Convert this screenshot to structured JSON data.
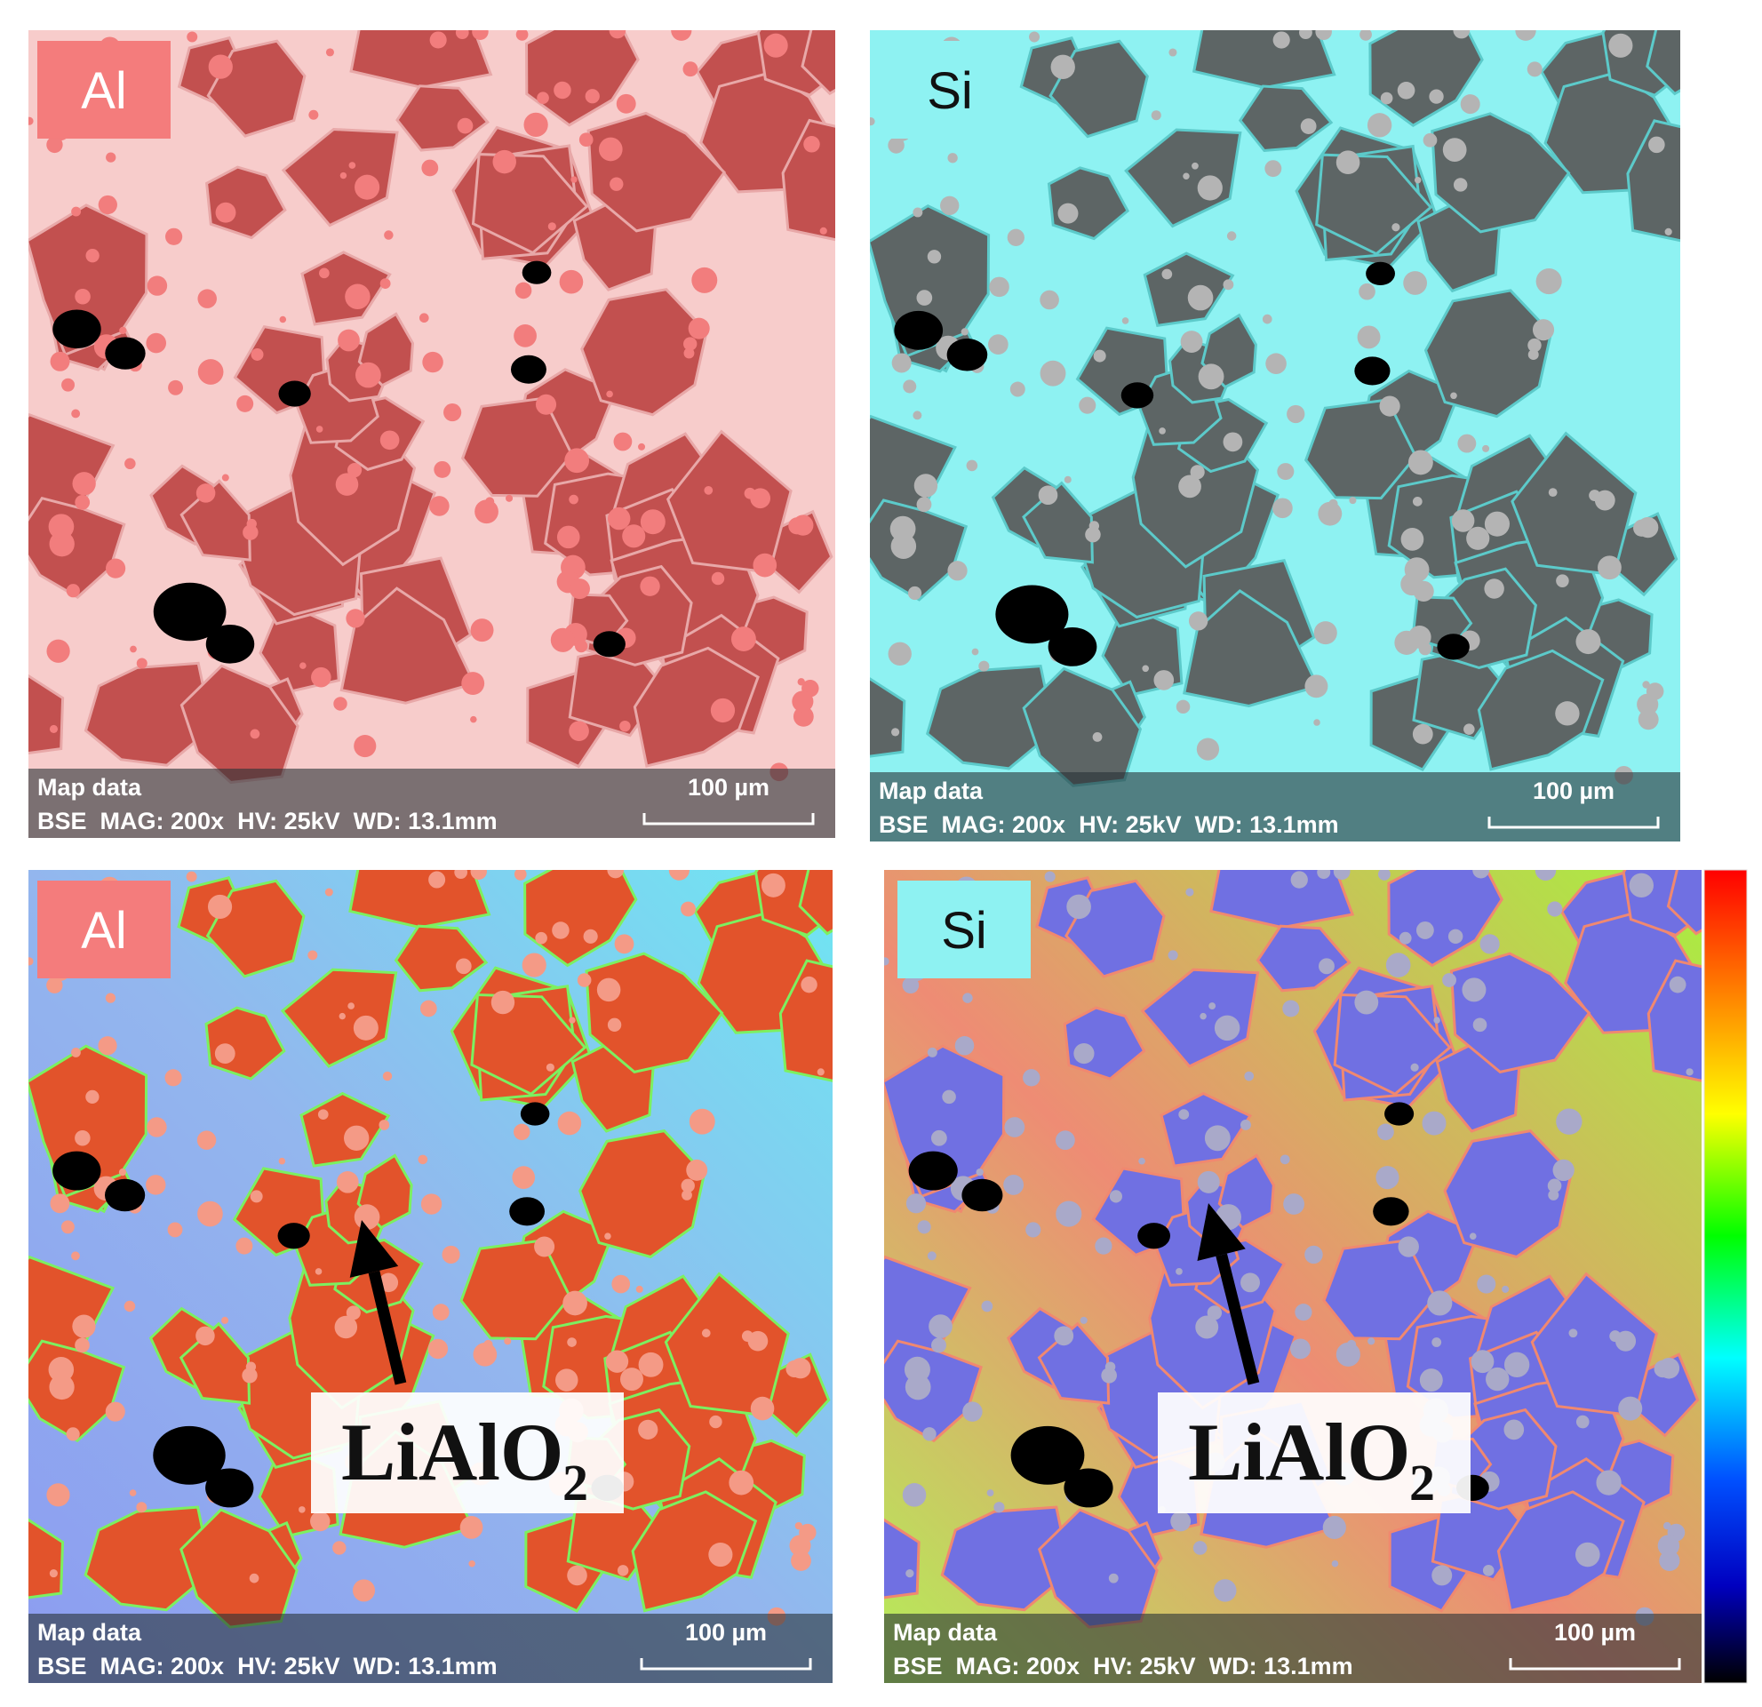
{
  "panels": [
    {
      "label": "Al",
      "map_title": "Map data",
      "info": "BSE  MAG: 200x  HV: 25kV  WD: 13.1mm",
      "scale": "100 µm"
    },
    {
      "label": "Si",
      "map_title": "Map data",
      "info": "BSE  MAG: 200x  HV: 25kV  WD: 13.1mm",
      "scale": "100 µm"
    },
    {
      "label": "Al",
      "map_title": "Map data",
      "info": "BSE  MAG: 200x  HV: 25kV  WD: 13.1mm",
      "scale": "100 µm"
    },
    {
      "label": "Si",
      "map_title": "Map data",
      "info": "BSE  MAG: 200x  HV: 25kV  WD: 13.1mm",
      "scale": "100 µm"
    }
  ],
  "annotations": [
    {
      "text": "LiAlO",
      "subscript": "2"
    },
    {
      "text": "LiAlO",
      "subscript": "2"
    }
  ]
}
